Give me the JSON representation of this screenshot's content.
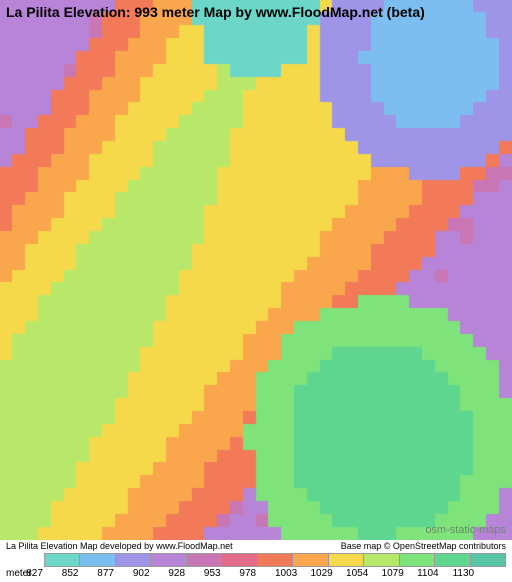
{
  "title": "La Pilita Elevation: 993 meter Map by www.FloodMap.net (beta)",
  "watermark": "osm-static-maps",
  "credit_left": "La Pilita Elevation Map developed by www.FloodMap.net",
  "credit_right": "Base map © OpenStreetMap contributors",
  "legend_unit": "meter",
  "elevation_palette": [
    "#6cd6c8",
    "#7dbef0",
    "#9e95e8",
    "#b784d8",
    "#c976b4",
    "#e36b87",
    "#f27a58",
    "#f9a64c",
    "#f5d94a",
    "#b8e86a",
    "#7de37a",
    "#5fd68f",
    "#58c7a8"
  ],
  "legend_values": [
    827,
    852,
    877,
    902,
    928,
    953,
    978,
    1003,
    1029,
    1054,
    1079,
    1104,
    1130
  ],
  "map": {
    "width_cells": 40,
    "height_cells": 42,
    "background_color": "#b784d8",
    "elevation_grid_seed": 1234
  }
}
